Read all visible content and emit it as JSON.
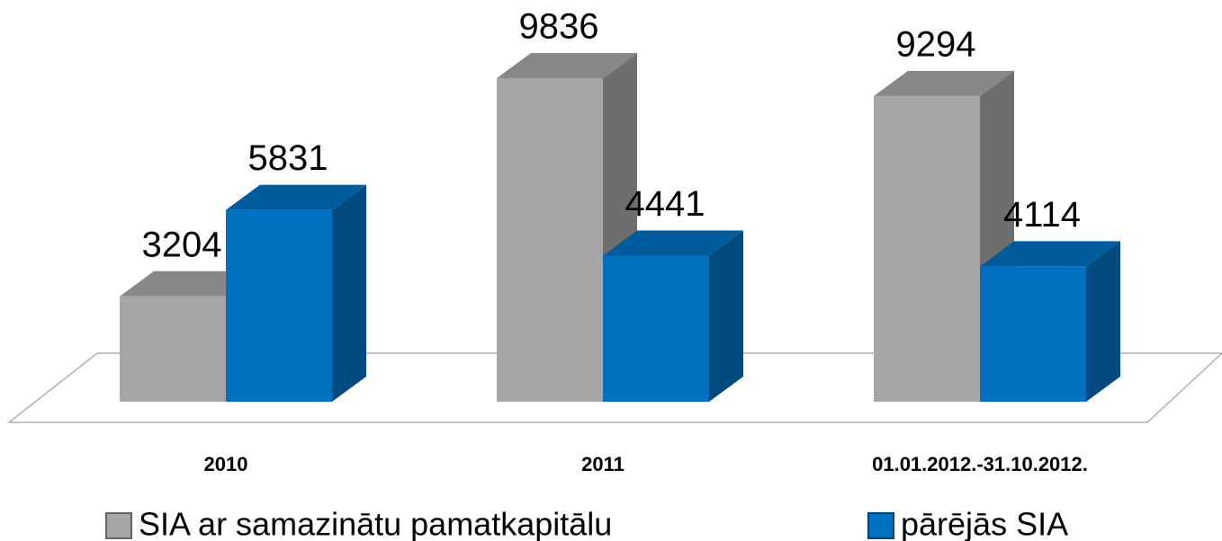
{
  "chart_data": {
    "type": "bar3d",
    "categories": [
      "2010",
      "2011",
      "01.01.2012.-31.10.2012."
    ],
    "series": [
      {
        "name": "SIA ar samazinātu pamatkapitālu",
        "color": "#a6a6a6",
        "values": [
          3204,
          9836,
          9294
        ]
      },
      {
        "name": "pārējās SIA",
        "color": "#0070c0",
        "values": [
          5831,
          4441,
          4114
        ]
      }
    ],
    "legend": "bottom"
  }
}
